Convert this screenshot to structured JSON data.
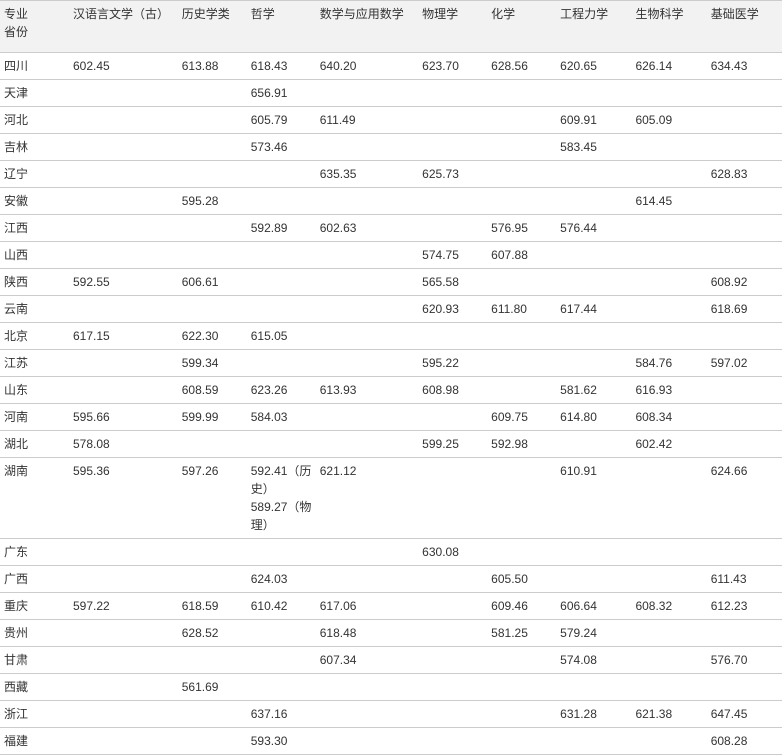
{
  "table": {
    "columns": [
      "专业\n省份",
      "汉语言文学（古）",
      "历史学类",
      "哲学",
      "数学与应用数学",
      "物理学",
      "化学",
      "工程力学",
      "生物科学",
      "基础医学"
    ],
    "column_classes": [
      "col0",
      "col1",
      "col2",
      "col3",
      "col4",
      "col5",
      "col6",
      "col7",
      "col8",
      "col9"
    ],
    "rows": [
      [
        "四川",
        "602.45",
        "613.88",
        "618.43",
        "640.20",
        "623.70",
        "628.56",
        "620.65",
        "626.14",
        "634.43"
      ],
      [
        "天津",
        "",
        "",
        "656.91",
        "",
        "",
        "",
        "",
        "",
        ""
      ],
      [
        "河北",
        "",
        "",
        "605.79",
        "611.49",
        "",
        "",
        "609.91",
        "605.09",
        ""
      ],
      [
        "吉林",
        "",
        "",
        "573.46",
        "",
        "",
        "",
        "583.45",
        "",
        ""
      ],
      [
        "辽宁",
        "",
        "",
        "",
        "635.35",
        "625.73",
        "",
        "",
        "",
        "628.83"
      ],
      [
        "安徽",
        "",
        "595.28",
        "",
        "",
        "",
        "",
        "",
        "614.45",
        ""
      ],
      [
        "江西",
        "",
        "",
        "592.89",
        "602.63",
        "",
        "576.95",
        "576.44",
        "",
        ""
      ],
      [
        "山西",
        "",
        "",
        "",
        "",
        "574.75",
        "607.88",
        "",
        "",
        ""
      ],
      [
        "陕西",
        "592.55",
        "606.61",
        "",
        "",
        "565.58",
        "",
        "",
        "",
        "608.92"
      ],
      [
        "云南",
        "",
        "",
        "",
        "",
        "620.93",
        "611.80",
        "617.44",
        "",
        "618.69"
      ],
      [
        "北京",
        "617.15",
        "622.30",
        "615.05",
        "",
        "",
        "",
        "",
        "",
        ""
      ],
      [
        "江苏",
        "",
        "599.34",
        "",
        "",
        "595.22",
        "",
        "",
        "584.76",
        "597.02"
      ],
      [
        "山东",
        "",
        "608.59",
        "623.26",
        "613.93",
        "608.98",
        "",
        "581.62",
        "616.93",
        ""
      ],
      [
        "河南",
        "595.66",
        "599.99",
        "584.03",
        "",
        "",
        "609.75",
        "614.80",
        "608.34",
        ""
      ],
      [
        "湖北",
        "578.08",
        "",
        "",
        "",
        "599.25",
        "592.98",
        "",
        "602.42",
        ""
      ],
      [
        "湖南",
        "595.36",
        "597.26",
        "592.41（历史）\n589.27（物理）",
        "621.12",
        "",
        "",
        "610.91",
        "",
        "624.66"
      ],
      [
        "广东",
        "",
        "",
        "",
        "",
        "630.08",
        "",
        "",
        "",
        ""
      ],
      [
        "广西",
        "",
        "",
        "624.03",
        "",
        "",
        "605.50",
        "",
        "",
        "611.43"
      ],
      [
        "重庆",
        "597.22",
        "618.59",
        "610.42",
        "617.06",
        "",
        "609.46",
        "606.64",
        "608.32",
        "612.23"
      ],
      [
        "贵州",
        "",
        "628.52",
        "",
        "618.48",
        "",
        "581.25",
        "579.24",
        "",
        ""
      ],
      [
        "甘肃",
        "",
        "",
        "",
        "607.34",
        "",
        "",
        "574.08",
        "",
        "576.70"
      ],
      [
        "西藏",
        "",
        "561.69",
        "",
        "",
        "",
        "",
        "",
        "",
        ""
      ],
      [
        "浙江",
        "",
        "",
        "637.16",
        "",
        "",
        "",
        "631.28",
        "621.38",
        "647.45"
      ],
      [
        "福建",
        "",
        "",
        "593.30",
        "",
        "",
        "",
        "",
        "",
        "608.28"
      ]
    ],
    "header_bg": "#f2f2f2",
    "border_color": "#cccccc",
    "text_color": "#333333",
    "font_size": 12,
    "bg_color": "#ffffff"
  }
}
